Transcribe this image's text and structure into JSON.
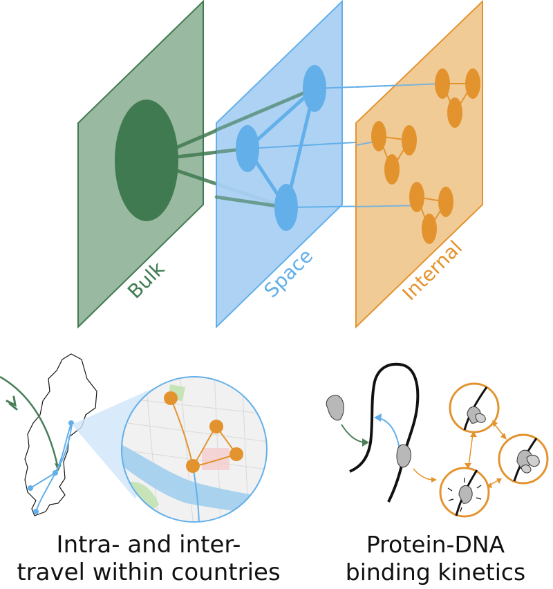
{
  "layers": {
    "bulk": {
      "label": "Bulk",
      "fill": "#9ab9a1",
      "stroke": "#3f7a50",
      "node": "#3f7a50"
    },
    "space": {
      "label": "Space",
      "fill": "#a9d0f3",
      "stroke": "#62afe9",
      "node": "#62afe9"
    },
    "internal": {
      "label": "Internal",
      "fill": "#f0c890",
      "stroke": "#e3932e",
      "node": "#e3932e"
    }
  },
  "captions": {
    "left_line1": "Intra- and inter-",
    "left_line2": "travel within countries",
    "right_line1": "Protein-DNA",
    "right_line2": "binding kinetics"
  },
  "colors": {
    "green": "#4a7f5a",
    "blue": "#62afe9",
    "orange": "#e3932e",
    "gray_protein": "#b8b8b8",
    "dna": "#111111"
  }
}
